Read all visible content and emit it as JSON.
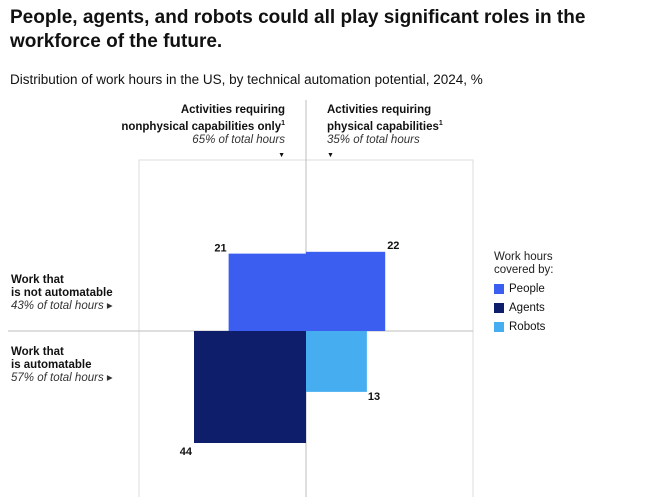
{
  "title": "People, agents, and robots could all play significant roles in the workforce of the future.",
  "subtitle": "Distribution of work hours in the US, by technical automation potential, 2024,",
  "subtitle_unit": "%",
  "columns": [
    {
      "line1": "Activities requiring",
      "line2": "nonphysical capabilities only",
      "sup": "1",
      "share": "65% of total hours"
    },
    {
      "line1": "Activities requiring",
      "line2": "physical capabilities",
      "sup": "1",
      "share": "35% of total hours"
    }
  ],
  "rows": [
    {
      "line1": "Work that",
      "line2": "is not automatable",
      "share": "43% of total hours"
    },
    {
      "line1": "Work that",
      "line2": "is automatable",
      "share": "57% of total hours"
    }
  ],
  "legend": {
    "title_line1": "Work hours",
    "title_line2": "covered by:",
    "items": [
      {
        "label": "People",
        "color": "#3b5ef0"
      },
      {
        "label": "Agents",
        "color": "#0f1e6b"
      },
      {
        "label": "Robots",
        "color": "#46aef0"
      }
    ]
  },
  "chart_data": {
    "type": "bar",
    "quadrants": [
      {
        "column": "nonphysical",
        "row": "not automatable",
        "series": "People",
        "value": 21
      },
      {
        "column": "physical",
        "row": "not automatable",
        "series": "People",
        "value": 22
      },
      {
        "column": "nonphysical",
        "row": "automatable",
        "series": "Agents",
        "value": 44
      },
      {
        "column": "physical",
        "row": "automatable",
        "series": "Robots",
        "value": 13
      }
    ],
    "column_shares": [
      65,
      35
    ],
    "row_shares": [
      43,
      57
    ]
  }
}
